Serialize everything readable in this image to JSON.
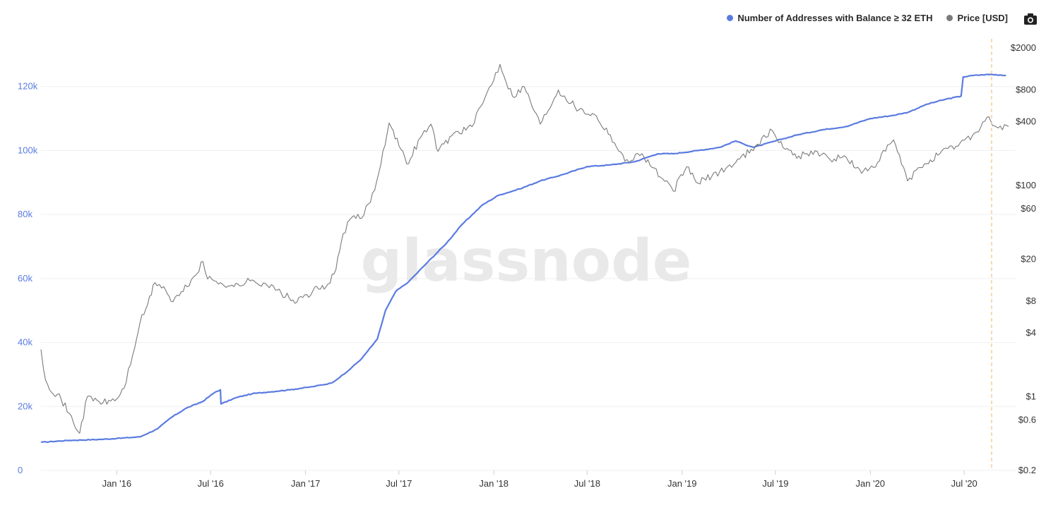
{
  "watermark": "glassnode",
  "legend": [
    {
      "name": "Number of Addresses with Balance ≥ 32 ETH",
      "color": "#5b7be0"
    },
    {
      "name": "Price [USD]",
      "color": "#7a7a7a"
    }
  ],
  "icons": {
    "camera": "camera-icon"
  },
  "chart_data": {
    "type": "line",
    "x_ticks": [
      "Jan '16",
      "Jul '16",
      "Jan '17",
      "Jul '17",
      "Jan '18",
      "Jul '18",
      "Jan '19",
      "Jul '19",
      "Jan '20",
      "Jul '20"
    ],
    "y_left": {
      "ticks": [
        "0",
        "20k",
        "40k",
        "60k",
        "80k",
        "100k",
        "120k"
      ],
      "range": [
        0,
        140000
      ],
      "color": "#5b7be0"
    },
    "y_right": {
      "ticks": [
        "$0.2",
        "$0.6",
        "$1",
        "$4",
        "$8",
        "$20",
        "$60",
        "$100",
        "$400",
        "$800",
        "$2000"
      ],
      "scale": "log",
      "color": "#333333"
    },
    "grid": true,
    "legend_position": "top-right",
    "series": [
      {
        "name": "Number of Addresses with Balance ≥ 32 ETH",
        "axis": "left",
        "color": "#5b7be0",
        "points": [
          [
            "2015-08-07",
            8800
          ],
          [
            "2015-10-01",
            9400
          ],
          [
            "2015-12-01",
            9700
          ],
          [
            "2016-01-01",
            10000
          ],
          [
            "2016-02-15",
            10500
          ],
          [
            "2016-03-20",
            13000
          ],
          [
            "2016-04-15",
            16500
          ],
          [
            "2016-05-15",
            19500
          ],
          [
            "2016-06-15",
            21500
          ],
          [
            "2016-07-10",
            24500
          ],
          [
            "2016-07-20",
            25200
          ],
          [
            "2016-07-21",
            20800
          ],
          [
            "2016-08-20",
            22800
          ],
          [
            "2016-09-20",
            24000
          ],
          [
            "2016-10-20",
            24500
          ],
          [
            "2016-12-01",
            25200
          ],
          [
            "2017-01-15",
            26200
          ],
          [
            "2017-02-20",
            27300
          ],
          [
            "2017-03-20",
            30500
          ],
          [
            "2017-04-20",
            35000
          ],
          [
            "2017-05-20",
            41000
          ],
          [
            "2017-06-05",
            50000
          ],
          [
            "2017-06-25",
            56000
          ],
          [
            "2017-07-20",
            59000
          ],
          [
            "2017-08-25",
            65000
          ],
          [
            "2017-10-01",
            71000
          ],
          [
            "2017-11-01",
            77000
          ],
          [
            "2017-12-10",
            83000
          ],
          [
            "2018-01-10",
            86000
          ],
          [
            "2018-02-20",
            88000
          ],
          [
            "2018-04-01",
            90500
          ],
          [
            "2018-05-15",
            92500
          ],
          [
            "2018-07-01",
            95000
          ],
          [
            "2018-08-15",
            95500
          ],
          [
            "2018-10-01",
            96500
          ],
          [
            "2018-11-15",
            99000
          ],
          [
            "2018-12-15",
            99000
          ],
          [
            "2019-02-01",
            100000
          ],
          [
            "2019-03-15",
            101000
          ],
          [
            "2019-04-15",
            103000
          ],
          [
            "2019-05-01",
            102000
          ],
          [
            "2019-05-20",
            101000
          ],
          [
            "2019-07-01",
            103000
          ],
          [
            "2019-08-15",
            105000
          ],
          [
            "2019-10-01",
            106500
          ],
          [
            "2019-11-15",
            107500
          ],
          [
            "2020-01-01",
            110000
          ],
          [
            "2020-02-15",
            111000
          ],
          [
            "2020-03-15",
            112000
          ],
          [
            "2020-04-20",
            114500
          ],
          [
            "2020-05-25",
            116000
          ],
          [
            "2020-06-25",
            117000
          ],
          [
            "2020-06-29",
            123000
          ],
          [
            "2020-07-20",
            123500
          ],
          [
            "2020-08-20",
            123800
          ],
          [
            "2020-09-20",
            123500
          ]
        ]
      },
      {
        "name": "Price [USD]",
        "axis": "right",
        "color": "#7a7a7a",
        "points": [
          [
            "2015-08-07",
            2.8
          ],
          [
            "2015-08-12",
            1.8
          ],
          [
            "2015-08-20",
            1.3
          ],
          [
            "2015-09-15",
            0.95
          ],
          [
            "2015-10-21",
            0.45
          ],
          [
            "2015-11-05",
            1.0
          ],
          [
            "2015-12-05",
            0.87
          ],
          [
            "2016-01-01",
            0.95
          ],
          [
            "2016-01-15",
            1.2
          ],
          [
            "2016-02-01",
            2.5
          ],
          [
            "2016-02-15",
            5.0
          ],
          [
            "2016-03-01",
            7.5
          ],
          [
            "2016-03-15",
            12.0
          ],
          [
            "2016-04-01",
            11.0
          ],
          [
            "2016-04-15",
            8.0
          ],
          [
            "2016-05-01",
            9.0
          ],
          [
            "2016-06-01",
            14.0
          ],
          [
            "2016-06-16",
            19.0
          ],
          [
            "2016-06-25",
            13.0
          ],
          [
            "2016-07-20",
            12.0
          ],
          [
            "2016-08-15",
            11.0
          ],
          [
            "2016-09-15",
            12.5
          ],
          [
            "2016-10-15",
            11.8
          ],
          [
            "2016-11-15",
            9.5
          ],
          [
            "2016-12-15",
            7.8
          ],
          [
            "2017-01-15",
            10.0
          ],
          [
            "2017-02-10",
            11.0
          ],
          [
            "2017-03-01",
            16.0
          ],
          [
            "2017-03-15",
            35.0
          ],
          [
            "2017-04-01",
            50.0
          ],
          [
            "2017-04-20",
            49.0
          ],
          [
            "2017-05-15",
            90.0
          ],
          [
            "2017-06-12",
            390.0
          ],
          [
            "2017-06-20",
            330.0
          ],
          [
            "2017-07-16",
            160.0
          ],
          [
            "2017-08-15",
            300.0
          ],
          [
            "2017-09-01",
            380.0
          ],
          [
            "2017-09-15",
            210.0
          ],
          [
            "2017-10-15",
            310.0
          ],
          [
            "2017-11-20",
            360.0
          ],
          [
            "2017-12-15",
            680.0
          ],
          [
            "2018-01-13",
            1400.0
          ],
          [
            "2018-02-06",
            700.0
          ],
          [
            "2018-03-01",
            860.0
          ],
          [
            "2018-04-01",
            380.0
          ],
          [
            "2018-05-06",
            800.0
          ],
          [
            "2018-06-15",
            520.0
          ],
          [
            "2018-07-15",
            470.0
          ],
          [
            "2018-08-15",
            300.0
          ],
          [
            "2018-09-12",
            170.0
          ],
          [
            "2018-10-15",
            200.0
          ],
          [
            "2018-11-20",
            120.0
          ],
          [
            "2018-12-15",
            88.0
          ],
          [
            "2019-01-10",
            150.0
          ],
          [
            "2019-02-01",
            105.0
          ],
          [
            "2019-03-15",
            135.0
          ],
          [
            "2019-04-15",
            165.0
          ],
          [
            "2019-05-15",
            220.0
          ],
          [
            "2019-06-25",
            330.0
          ],
          [
            "2019-07-20",
            220.0
          ],
          [
            "2019-08-15",
            190.0
          ],
          [
            "2019-09-20",
            210.0
          ],
          [
            "2019-10-15",
            175.0
          ],
          [
            "2019-11-15",
            185.0
          ],
          [
            "2019-12-15",
            130.0
          ],
          [
            "2020-01-15",
            165.0
          ],
          [
            "2020-02-15",
            270.0
          ],
          [
            "2020-03-13",
            110.0
          ],
          [
            "2020-04-15",
            160.0
          ],
          [
            "2020-05-15",
            200.0
          ],
          [
            "2020-06-15",
            235.0
          ],
          [
            "2020-07-25",
            320.0
          ],
          [
            "2020-08-14",
            440.0
          ],
          [
            "2020-09-05",
            350.0
          ],
          [
            "2020-09-25",
            360.0
          ]
        ]
      }
    ]
  }
}
